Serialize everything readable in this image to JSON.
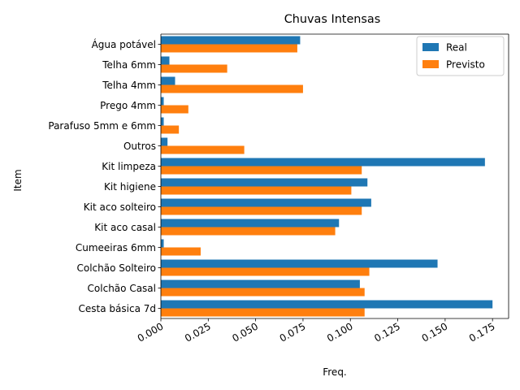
{
  "chart_data": {
    "type": "bar",
    "orientation": "horizontal",
    "title": "Chuvas Intensas",
    "xlabel": "Freq.",
    "ylabel": "Item",
    "categories": [
      "Cesta básica 7d",
      "Colchão Casal",
      "Colchão Solteiro",
      "Cumeeiras 6mm",
      "Kit aco casal",
      "Kit aco solteiro",
      "Kit higiene",
      "Kit limpeza",
      "Outros",
      "Parafuso 5mm e 6mm",
      "Prego 4mm",
      "Telha 4mm",
      "Telha 6mm",
      "Água potável"
    ],
    "series": [
      {
        "name": "Real",
        "color": "#1f77b4",
        "values": [
          0.175,
          0.105,
          0.146,
          0.0015,
          0.094,
          0.111,
          0.109,
          0.171,
          0.0035,
          0.0015,
          0.0015,
          0.0075,
          0.0045,
          0.0735
        ]
      },
      {
        "name": "Previsto",
        "color": "#ff7f0e",
        "values": [
          0.1075,
          0.1075,
          0.11,
          0.021,
          0.092,
          0.106,
          0.1005,
          0.106,
          0.044,
          0.0095,
          0.0145,
          0.075,
          0.035,
          0.072
        ]
      }
    ],
    "xlim": [
      0,
      0.1835
    ],
    "xticks": [
      "0.000",
      "0.025",
      "0.050",
      "0.075",
      "0.100",
      "0.125",
      "0.150",
      "0.175"
    ],
    "grid": false,
    "legend_position": "top-right"
  }
}
